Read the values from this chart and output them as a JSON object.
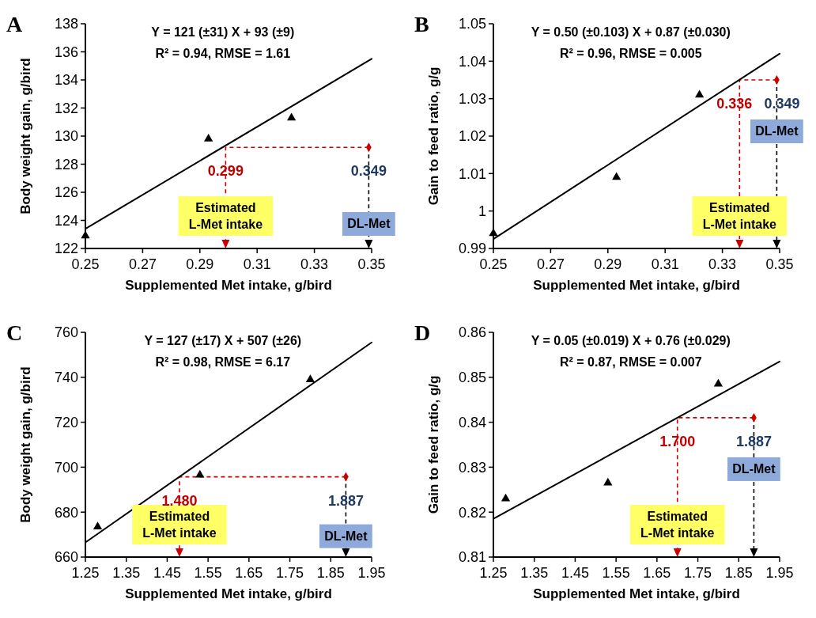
{
  "chart_data": [
    {
      "type": "scatter",
      "title": "A",
      "xlabel": "Supplemented Met intake, g/bird",
      "ylabel": "Body weight gain, g/bird",
      "xlim": [
        0.25,
        0.35
      ],
      "xticks": [
        0.25,
        0.27,
        0.29,
        0.31,
        0.33,
        0.35
      ],
      "ylim": [
        122,
        138
      ],
      "yticks": [
        122,
        124,
        126,
        128,
        130,
        132,
        134,
        136,
        138
      ],
      "series": [
        {
          "marker": "triangle",
          "color": "#000000",
          "x": [
            0.25,
            0.293,
            0.322
          ],
          "values": [
            122.9,
            129.8,
            131.3
          ]
        },
        {
          "type": "line",
          "line_style": "solid",
          "color": "#000000",
          "x": [
            0.25,
            0.35
          ],
          "values": [
            123.4,
            135.5
          ]
        },
        {
          "marker": "diamond",
          "color": "#cc0000",
          "x": [
            0.349
          ],
          "values": [
            129.2
          ]
        }
      ],
      "annotations": [
        "Y = 121 (±31) X + 93 (±9)",
        "R² = 0.94, RMSE = 1.61",
        {
          "text": "0.299",
          "x": 0.299,
          "y": 129.2
        },
        "Estimated L-Met intake",
        {
          "text": "0.349",
          "x": 0.349,
          "y": 129.2
        },
        {
          "text": "DL-Met",
          "x": 0.349,
          "y": 129.2
        }
      ]
    },
    {
      "type": "scatter",
      "title": "B",
      "xlabel": "Supplemented Met intake, g/bird",
      "ylabel": "Gain to feed ratio, g/g",
      "xlim": [
        0.25,
        0.35
      ],
      "xticks": [
        0.25,
        0.27,
        0.29,
        0.31,
        0.33,
        0.35
      ],
      "ylim": [
        0.99,
        1.05
      ],
      "yticks": [
        0.99,
        1,
        1.01,
        1.02,
        1.03,
        1.04,
        1.05
      ],
      "series": [
        {
          "marker": "triangle",
          "color": "#000000",
          "x": [
            0.25,
            0.293,
            0.322
          ],
          "values": [
            0.994,
            1.009,
            1.031
          ]
        },
        {
          "type": "line",
          "line_style": "solid",
          "color": "#000000",
          "x": [
            0.25,
            0.35
          ],
          "values": [
            0.9925,
            1.042
          ]
        },
        {
          "marker": "diamond",
          "color": "#cc0000",
          "x": [
            0.349
          ],
          "values": [
            1.035
          ]
        }
      ],
      "annotations": [
        "Y = 0.50 (±0.103) X + 0.87 (±0.030)",
        "R² = 0.96, RMSE = 0.005",
        {
          "text": "0.336",
          "x": 0.336,
          "y": 1.035
        },
        "Estimated L-Met intake",
        {
          "text": "0.349",
          "x": 0.349,
          "y": 1.035
        },
        "DL-Met"
      ]
    },
    {
      "type": "scatter",
      "title": "C",
      "xlabel": "Supplemented Met intake, g/bird",
      "ylabel": "Body weight gain, g/bird",
      "xlim": [
        1.25,
        1.95
      ],
      "xticks": [
        1.25,
        1.35,
        1.45,
        1.55,
        1.65,
        1.75,
        1.85,
        1.95
      ],
      "ylim": [
        660,
        760
      ],
      "yticks": [
        660,
        680,
        700,
        720,
        740,
        760
      ],
      "series": [
        {
          "marker": "triangle",
          "color": "#000000",
          "x": [
            1.28,
            1.53,
            1.8
          ],
          "values": [
            673.5,
            696.5,
            739
          ]
        },
        {
          "type": "line",
          "line_style": "solid",
          "color": "#000000",
          "x": [
            1.25,
            1.95
          ],
          "values": [
            666.5,
            755.5
          ]
        },
        {
          "marker": "diamond",
          "color": "#cc0000",
          "x": [
            1.887
          ],
          "values": [
            695.7
          ]
        }
      ],
      "annotations": [
        "Y = 127 (±17) X + 507 (±26)",
        "R² = 0.98, RMSE = 6.17",
        {
          "text": "1.480",
          "x": 1.48,
          "y": 695.7
        },
        "Estimated L-Met intake",
        {
          "text": "1.887",
          "x": 1.887,
          "y": 695.7
        },
        {
          "text": "DL-Met",
          "x": 1.887,
          "y": 695.7
        }
      ]
    },
    {
      "type": "scatter",
      "title": "D",
      "xlabel": "Supplemented Met intake, g/bird",
      "ylabel": "Gain to feed ratio, g/g",
      "xlim": [
        1.25,
        1.95
      ],
      "xticks": [
        1.25,
        1.35,
        1.45,
        1.55,
        1.65,
        1.75,
        1.85,
        1.95
      ],
      "ylim": [
        0.81,
        0.86
      ],
      "yticks": [
        0.81,
        0.82,
        0.83,
        0.84,
        0.85,
        0.86
      ],
      "series": [
        {
          "marker": "triangle",
          "color": "#000000",
          "x": [
            1.28,
            1.53,
            1.8
          ],
          "values": [
            0.823,
            0.8265,
            0.8485
          ]
        },
        {
          "type": "line",
          "line_style": "solid",
          "color": "#000000",
          "x": [
            1.25,
            1.95
          ],
          "values": [
            0.8185,
            0.8535
          ]
        },
        {
          "marker": "diamond",
          "color": "#cc0000",
          "x": [
            1.887
          ],
          "values": [
            0.841
          ]
        }
      ],
      "annotations": [
        "Y = 0.05 (±0.019) X + 0.76 (±0.029)",
        "R² = 0.87, RMSE = 0.007",
        {
          "text": "1.700",
          "x": 1.7,
          "y": 0.841
        },
        "Estimated L-Met intake",
        {
          "text": "1.887",
          "x": 1.887,
          "y": 0.841
        },
        "DL-Met"
      ]
    }
  ]
}
